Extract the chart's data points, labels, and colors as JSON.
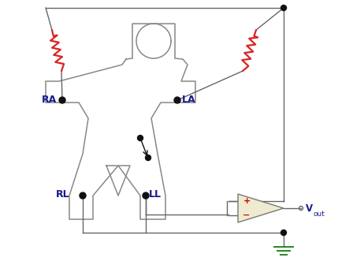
{
  "bg_color": "#ffffff",
  "body_color": "#888888",
  "wire_color": "#666666",
  "resistor_color": "#dd2222",
  "label_color": "#1a1a8c",
  "opamp_fill": "#f0ead0",
  "opamp_outline": "#777777",
  "dot_color": "#111111",
  "ground_color": "#228822",
  "ra_label": "RA",
  "la_label": "LA",
  "rl_label": "RL",
  "ll_label": "LL",
  "vout_label": "V",
  "vout_sub": "out",
  "figw": 4.48,
  "figh": 3.36,
  "dpi": 100
}
